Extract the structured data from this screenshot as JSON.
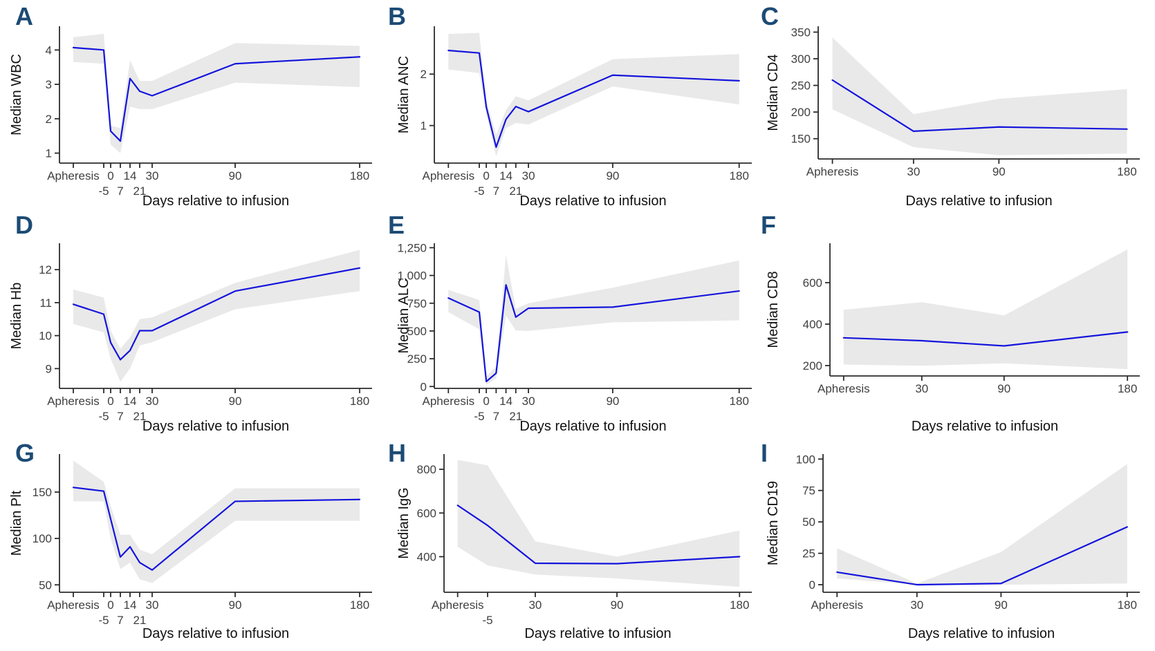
{
  "figure": {
    "x_axis_label": "Days relative to infusion",
    "colors": {
      "line": "#1414dd",
      "band": "#e9e9e9",
      "panel_letter": "#1c4b75",
      "axis": "#2b2b2b",
      "tick_text": "#404040",
      "title_text": "#111111"
    }
  },
  "chart_data": [
    {
      "label": "A",
      "type": "line",
      "ylabel": "Median WBC",
      "xlabel": "Days relative to infusion",
      "x_domain": [
        -37,
        189
      ],
      "y_domain": [
        0.71,
        4.69
      ],
      "x_days": [
        -27,
        -5,
        0,
        7,
        14,
        21,
        30,
        90,
        180
      ],
      "median": [
        4.07,
        4.0,
        1.64,
        1.35,
        3.17,
        2.8,
        2.67,
        3.6,
        3.8
      ],
      "band_upper": [
        4.37,
        4.47,
        1.8,
        1.73,
        3.7,
        3.1,
        3.1,
        4.2,
        4.12
      ],
      "band_lower": [
        3.65,
        3.6,
        1.25,
        1.0,
        2.35,
        2.28,
        2.28,
        3.05,
        2.92
      ],
      "y_tick_values": [
        1,
        2,
        3,
        4
      ],
      "y_tick_labels": [
        "1",
        "2",
        "3",
        "4"
      ],
      "x_ticks": [
        {
          "day": -27,
          "label": "Apheresis",
          "row": 1
        },
        {
          "day": -5,
          "label": "-5",
          "row": 2
        },
        {
          "day": 0,
          "label": "0",
          "row": 1
        },
        {
          "day": 7,
          "label": "7",
          "row": 2
        },
        {
          "day": 14,
          "label": "14",
          "row": 1
        },
        {
          "day": 21,
          "label": "21",
          "row": 2
        },
        {
          "day": 30,
          "label": "30",
          "row": 1
        },
        {
          "day": 90,
          "label": "90",
          "row": 1
        },
        {
          "day": 180,
          "label": "180",
          "row": 1
        }
      ]
    },
    {
      "label": "B",
      "type": "line",
      "ylabel": "Median ANC",
      "xlabel": "Days relative to infusion",
      "x_domain": [
        -37,
        189
      ],
      "y_domain": [
        0.27,
        2.93
      ],
      "x_days": [
        -27,
        -5,
        0,
        7,
        14,
        21,
        30,
        90,
        180
      ],
      "median": [
        2.46,
        2.41,
        1.36,
        0.58,
        1.12,
        1.37,
        1.27,
        1.98,
        1.87
      ],
      "band_upper": [
        2.78,
        2.8,
        1.5,
        0.82,
        1.3,
        1.57,
        1.49,
        2.29,
        2.39
      ],
      "band_lower": [
        2.09,
        2.02,
        1.22,
        0.4,
        0.95,
        1.05,
        1.02,
        1.76,
        1.41
      ],
      "y_tick_values": [
        1,
        2
      ],
      "y_tick_labels": [
        "1",
        "2"
      ],
      "x_ticks": [
        {
          "day": -27,
          "label": "Apheresis",
          "row": 1
        },
        {
          "day": -5,
          "label": "-5",
          "row": 2
        },
        {
          "day": 0,
          "label": "0",
          "row": 1
        },
        {
          "day": 7,
          "label": "7",
          "row": 2
        },
        {
          "day": 14,
          "label": "14",
          "row": 1
        },
        {
          "day": 21,
          "label": "21",
          "row": 2
        },
        {
          "day": 30,
          "label": "30",
          "row": 1
        },
        {
          "day": 90,
          "label": "90",
          "row": 1
        },
        {
          "day": 180,
          "label": "180",
          "row": 1
        }
      ]
    },
    {
      "label": "C",
      "type": "line",
      "ylabel": "Median CD4",
      "xlabel": "Days relative to infusion",
      "x_domain": [
        -37,
        189
      ],
      "y_domain": [
        112,
        361
      ],
      "x_days": [
        -27,
        30,
        90,
        180
      ],
      "median": [
        260,
        164,
        172,
        168
      ],
      "band_upper": [
        340,
        196,
        225,
        243
      ],
      "band_lower": [
        205,
        134,
        119,
        122
      ],
      "y_tick_values": [
        150,
        200,
        250,
        300,
        350
      ],
      "y_tick_labels": [
        "150",
        "200",
        "250",
        "300",
        "350"
      ],
      "x_ticks": [
        {
          "day": -27,
          "label": "Apheresis",
          "row": 1
        },
        {
          "day": 30,
          "label": "30",
          "row": 1
        },
        {
          "day": 90,
          "label": "90",
          "row": 1
        },
        {
          "day": 180,
          "label": "180",
          "row": 1
        }
      ]
    },
    {
      "label": "D",
      "type": "line",
      "ylabel": "Median Hb",
      "xlabel": "Days relative to infusion",
      "x_domain": [
        -37,
        189
      ],
      "y_domain": [
        8.4,
        12.8
      ],
      "x_days": [
        -27,
        -5,
        0,
        7,
        14,
        21,
        30,
        90,
        180
      ],
      "median": [
        10.95,
        10.65,
        9.79,
        9.27,
        9.55,
        10.15,
        10.15,
        11.35,
        12.05
      ],
      "band_upper": [
        11.4,
        11.15,
        10.15,
        9.6,
        9.95,
        10.5,
        10.55,
        11.6,
        12.6
      ],
      "band_lower": [
        10.35,
        10.1,
        9.3,
        8.6,
        9.0,
        9.7,
        9.8,
        10.8,
        11.35
      ],
      "y_tick_values": [
        9,
        10,
        11,
        12
      ],
      "y_tick_labels": [
        "9",
        "10",
        "11",
        "12"
      ],
      "x_ticks": [
        {
          "day": -27,
          "label": "Apheresis",
          "row": 1
        },
        {
          "day": -5,
          "label": "-5",
          "row": 2
        },
        {
          "day": 0,
          "label": "0",
          "row": 1
        },
        {
          "day": 7,
          "label": "7",
          "row": 2
        },
        {
          "day": 14,
          "label": "14",
          "row": 1
        },
        {
          "day": 21,
          "label": "21",
          "row": 2
        },
        {
          "day": 30,
          "label": "30",
          "row": 1
        },
        {
          "day": 90,
          "label": "90",
          "row": 1
        },
        {
          "day": 180,
          "label": "180",
          "row": 1
        }
      ]
    },
    {
      "label": "E",
      "type": "line",
      "ylabel": "Median ALC",
      "xlabel": "Days relative to infusion",
      "x_domain": [
        -37,
        189
      ],
      "y_domain": [
        -17,
        1290
      ],
      "x_days": [
        -27,
        -5,
        0,
        7,
        14,
        21,
        30,
        90,
        180
      ],
      "median": [
        797,
        670,
        45,
        120,
        915,
        625,
        705,
        715,
        860
      ],
      "band_upper": [
        870,
        780,
        90,
        180,
        1185,
        700,
        750,
        890,
        1135
      ],
      "band_lower": [
        670,
        515,
        15,
        75,
        640,
        505,
        500,
        578,
        595
      ],
      "y_tick_values": [
        0,
        250,
        500,
        750,
        1000,
        1250
      ],
      "y_tick_labels": [
        "0",
        "250",
        "500",
        "750",
        "1,000",
        "1,250"
      ],
      "x_ticks": [
        {
          "day": -27,
          "label": "Apheresis",
          "row": 1
        },
        {
          "day": -5,
          "label": "-5",
          "row": 2
        },
        {
          "day": 0,
          "label": "0",
          "row": 1
        },
        {
          "day": 7,
          "label": "7",
          "row": 2
        },
        {
          "day": 14,
          "label": "14",
          "row": 1
        },
        {
          "day": 21,
          "label": "21",
          "row": 2
        },
        {
          "day": 30,
          "label": "30",
          "row": 1
        },
        {
          "day": 90,
          "label": "90",
          "row": 1
        },
        {
          "day": 180,
          "label": "180",
          "row": 1
        }
      ]
    },
    {
      "label": "F",
      "type": "line",
      "ylabel": "Median CD8",
      "xlabel": "Days relative to infusion",
      "x_domain": [
        -37,
        189
      ],
      "y_domain": [
        150,
        790
      ],
      "x_days": [
        -27,
        30,
        90,
        180
      ],
      "median": [
        334,
        320,
        295,
        362
      ],
      "band_upper": [
        469,
        506,
        442,
        760
      ],
      "band_lower": [
        205,
        199,
        211,
        183
      ],
      "y_tick_values": [
        200,
        400,
        600
      ],
      "y_tick_labels": [
        "200",
        "400",
        "600"
      ],
      "x_ticks": [
        {
          "day": -27,
          "label": "Apheresis",
          "row": 1
        },
        {
          "day": 30,
          "label": "30",
          "row": 1
        },
        {
          "day": 90,
          "label": "90",
          "row": 1
        },
        {
          "day": 180,
          "label": "180",
          "row": 1
        }
      ]
    },
    {
      "label": "G",
      "type": "line",
      "ylabel": "Median Plt",
      "xlabel": "Days relative to infusion",
      "x_domain": [
        -37,
        189
      ],
      "y_domain": [
        42,
        191
      ],
      "x_days": [
        -27,
        -5,
        0,
        7,
        14,
        21,
        30,
        90,
        180
      ],
      "median": [
        155,
        151,
        121,
        80,
        91,
        74,
        66,
        140,
        142
      ],
      "band_upper": [
        184,
        161,
        135,
        104,
        104,
        88,
        83,
        154,
        154
      ],
      "band_lower": [
        140,
        140,
        100,
        67,
        74,
        56,
        52,
        119,
        119
      ],
      "y_tick_values": [
        50,
        100,
        150
      ],
      "y_tick_labels": [
        "50",
        "100",
        "150"
      ],
      "x_ticks": [
        {
          "day": -27,
          "label": "Apheresis",
          "row": 1
        },
        {
          "day": -5,
          "label": "-5",
          "row": 2
        },
        {
          "day": 0,
          "label": "0",
          "row": 1
        },
        {
          "day": 7,
          "label": "7",
          "row": 2
        },
        {
          "day": 14,
          "label": "14",
          "row": 1
        },
        {
          "day": 21,
          "label": "21",
          "row": 2
        },
        {
          "day": 30,
          "label": "30",
          "row": 1
        },
        {
          "day": 90,
          "label": "90",
          "row": 1
        },
        {
          "day": 180,
          "label": "180",
          "row": 1
        }
      ]
    },
    {
      "label": "H",
      "type": "line",
      "ylabel": "Median IgG",
      "xlabel": "Days relative to infusion",
      "x_domain": [
        -37,
        189
      ],
      "y_domain": [
        237,
        870
      ],
      "x_days": [
        -27,
        -5,
        30,
        90,
        180
      ],
      "median": [
        635,
        543,
        370,
        368,
        400
      ],
      "band_upper": [
        843,
        818,
        470,
        400,
        520
      ],
      "band_lower": [
        445,
        360,
        318,
        300,
        262
      ],
      "y_tick_values": [
        400,
        600,
        800
      ],
      "y_tick_labels": [
        "400",
        "600",
        "800"
      ],
      "x_ticks": [
        {
          "day": -27,
          "label": "Apheresis",
          "row": 1
        },
        {
          "day": -5,
          "label": "-5",
          "row": 2
        },
        {
          "day": 30,
          "label": "30",
          "row": 1
        },
        {
          "day": 90,
          "label": "90",
          "row": 1
        },
        {
          "day": 180,
          "label": "180",
          "row": 1
        }
      ]
    },
    {
      "label": "I",
      "type": "line",
      "ylabel": "Median CD19",
      "xlabel": "Days relative to infusion",
      "x_domain": [
        -37,
        189
      ],
      "y_domain": [
        -6,
        104
      ],
      "x_days": [
        -27,
        30,
        90,
        180
      ],
      "median": [
        10,
        0,
        1,
        46
      ],
      "band_upper": [
        29,
        1,
        26,
        96
      ],
      "band_lower": [
        5,
        0,
        0,
        1
      ],
      "y_tick_values": [
        0,
        25,
        50,
        75,
        100
      ],
      "y_tick_labels": [
        "0",
        "25",
        "50",
        "75",
        "100"
      ],
      "x_ticks": [
        {
          "day": -27,
          "label": "Apheresis",
          "row": 1
        },
        {
          "day": 30,
          "label": "30",
          "row": 1
        },
        {
          "day": 90,
          "label": "90",
          "row": 1
        },
        {
          "day": 180,
          "label": "180",
          "row": 1
        }
      ]
    }
  ]
}
